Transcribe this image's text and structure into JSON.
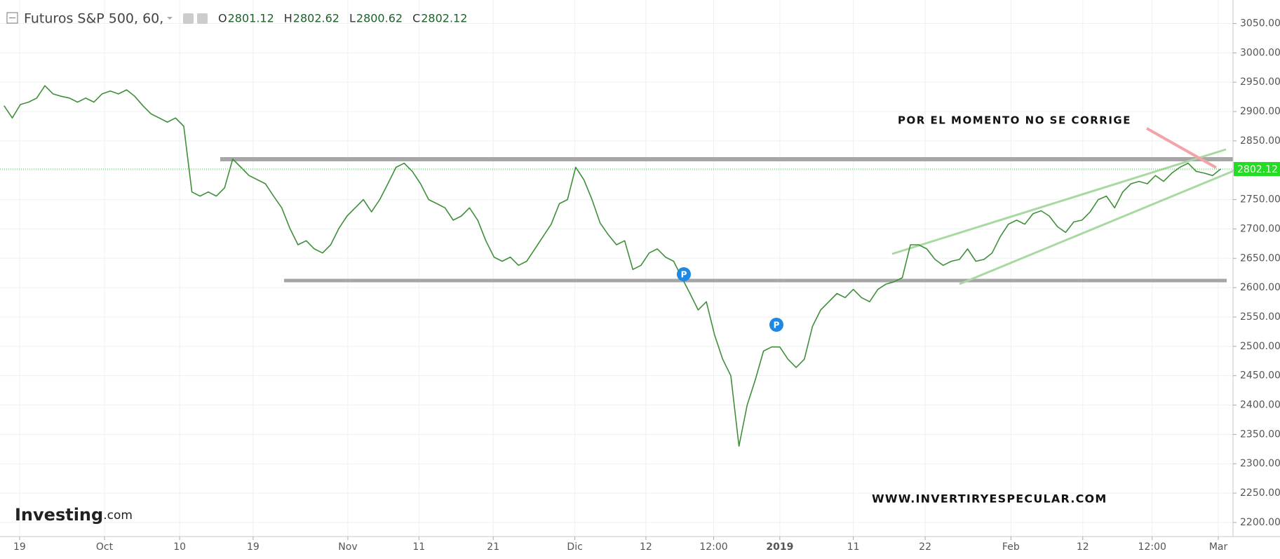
{
  "header": {
    "title": "Futuros S&P 500, 60,",
    "ohlc": [
      {
        "key": "O",
        "value": 2801.12
      },
      {
        "key": "H",
        "value": 2802.62
      },
      {
        "key": "L",
        "value": 2800.62
      },
      {
        "key": "C",
        "value": 2802.12
      }
    ]
  },
  "chart_data": {
    "type": "line",
    "color": "#3f8f3a",
    "last_color": "#22dd22",
    "grid": true,
    "values": [
      2910,
      2889,
      2912,
      2916,
      2923,
      2944,
      2930,
      2926,
      2923,
      2916,
      2923,
      2916,
      2930,
      2935,
      2930,
      2937,
      2926,
      2910,
      2896,
      2889,
      2882,
      2889,
      2875,
      2763,
      2756,
      2763,
      2756,
      2770,
      2819,
      2805,
      2791,
      2784,
      2777,
      2756,
      2736,
      2701,
      2673,
      2680,
      2666,
      2659,
      2673,
      2701,
      2722,
      2736,
      2750,
      2729,
      2750,
      2777,
      2805,
      2812,
      2798,
      2777,
      2750,
      2743,
      2736,
      2715,
      2722,
      2736,
      2715,
      2680,
      2652,
      2645,
      2652,
      2638,
      2645,
      2666,
      2687,
      2708,
      2743,
      2750,
      2805,
      2784,
      2750,
      2710,
      2690,
      2673,
      2680,
      2631,
      2638,
      2659,
      2666,
      2652,
      2645,
      2617,
      2590,
      2562,
      2576,
      2520,
      2478,
      2450,
      2330,
      2400,
      2443,
      2492,
      2499,
      2499,
      2478,
      2464,
      2478,
      2534,
      2562,
      2576,
      2590,
      2583,
      2597,
      2583,
      2576,
      2597,
      2606,
      2610,
      2617,
      2673,
      2673,
      2666,
      2648,
      2638,
      2645,
      2648,
      2666,
      2645,
      2648,
      2659,
      2687,
      2708,
      2715,
      2708,
      2726,
      2731,
      2722,
      2704,
      2694,
      2712,
      2715,
      2729,
      2750,
      2756,
      2736,
      2763,
      2777,
      2781,
      2777,
      2791,
      2781,
      2795,
      2805,
      2812,
      2798,
      2795,
      2791,
      2802.12
    ],
    "xlim": [
      -0.5,
      150.5
    ],
    "xticks": [
      {
        "value": 1.9,
        "label": "19"
      },
      {
        "value": 12.3,
        "label": "Oct"
      },
      {
        "value": 21.5,
        "label": "10"
      },
      {
        "value": 30.5,
        "label": "19"
      },
      {
        "value": 42.1,
        "label": "Nov"
      },
      {
        "value": 50.8,
        "label": "11"
      },
      {
        "value": 59.9,
        "label": "21"
      },
      {
        "value": 69.9,
        "label": "Dic"
      },
      {
        "value": 78.6,
        "label": "12"
      },
      {
        "value": 86.9,
        "label": "12:00"
      },
      {
        "value": 95,
        "label": "2019"
      },
      {
        "value": 104,
        "label": "11"
      },
      {
        "value": 112.8,
        "label": "22"
      },
      {
        "value": 123.3,
        "label": "Feb"
      },
      {
        "value": 132.1,
        "label": "12"
      },
      {
        "value": 140.6,
        "label": "12:00"
      },
      {
        "value": 148.7,
        "label": "Mar"
      }
    ],
    "ylim": [
      2176,
      3090
    ],
    "yticks": [
      {
        "value": 2200,
        "label": "2200.00"
      },
      {
        "value": 2250,
        "label": "2250.00"
      },
      {
        "value": 2300,
        "label": "2300.00"
      },
      {
        "value": 2350,
        "label": "2350.00"
      },
      {
        "value": 2400,
        "label": "2400.00"
      },
      {
        "value": 2450,
        "label": "2450.00"
      },
      {
        "value": 2500,
        "label": "2500.00"
      },
      {
        "value": 2550,
        "label": "2550.00"
      },
      {
        "value": 2600,
        "label": "2600.00"
      },
      {
        "value": 2650,
        "label": "2650.00"
      },
      {
        "value": 2700,
        "label": "2700.00"
      },
      {
        "value": 2750,
        "label": "2750.00"
      },
      {
        "value": 2800,
        "label": "2800.00"
      },
      {
        "value": 2850,
        "label": "2850.00"
      },
      {
        "value": 2900,
        "label": "2900.00"
      },
      {
        "value": 2950,
        "label": "2950.00"
      },
      {
        "value": 3000,
        "label": "3000.00"
      },
      {
        "value": 3050,
        "label": "3050.00"
      }
    ],
    "annotations": [
      "POR EL MOMENTO NO SE CORRIGE",
      "WWW.INVERTIRYESPECULAR.COM",
      "P",
      "P"
    ],
    "logo": [
      "Investing",
      ".com"
    ]
  }
}
